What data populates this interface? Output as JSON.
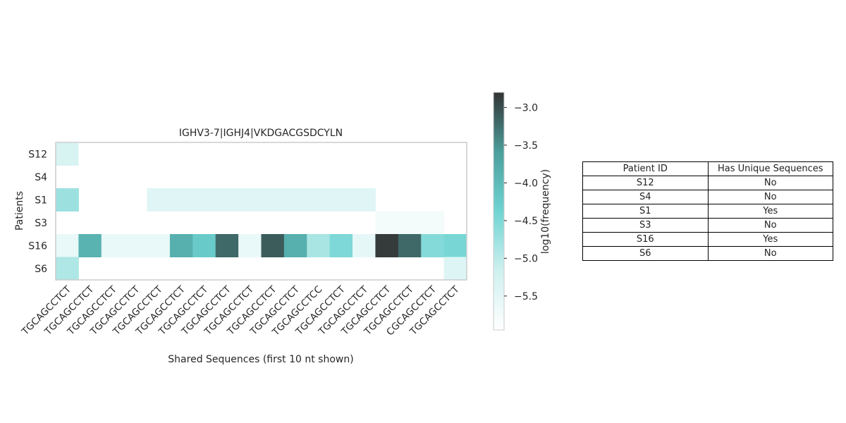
{
  "chart_data": {
    "type": "heatmap",
    "title": "IGHV3-7|IGHJ4|VKDGACGSDCYLN",
    "xlabel": "Shared Sequences (first 10 nt shown)",
    "ylabel": "Patients",
    "rows": [
      "S12",
      "S4",
      "S1",
      "S3",
      "S16",
      "S6"
    ],
    "columns": [
      "TGCAGCCTCT",
      "TGCAGCCTCT",
      "TGCAGCCTCT",
      "TGCAGCCTCT",
      "TGCAGCCTCT",
      "TGCAGCCTCT",
      "TGCAGCCTCT",
      "TGCAGCCTCT",
      "TGCAGCCTCT",
      "TGCAGCCTCT",
      "TGCAGCCTCT",
      "TGCAGCCTCC",
      "TGCAGCCTCT",
      "TGCAGCCTCT",
      "TGCAGCCTCT",
      "TGCAGCCTCT",
      "CGCAGCCTCT",
      "TGCAGCCTCT"
    ],
    "values": [
      [
        -5.3,
        -5.95,
        -5.95,
        -5.95,
        null,
        null,
        null,
        null,
        null,
        null,
        null,
        null,
        null,
        null,
        null,
        null,
        null,
        null
      ],
      [
        null,
        null,
        null,
        null,
        null,
        null,
        null,
        null,
        null,
        null,
        null,
        null,
        null,
        null,
        null,
        null,
        null,
        null
      ],
      [
        -4.75,
        null,
        null,
        null,
        -5.45,
        -5.45,
        -5.45,
        -5.45,
        -5.45,
        -5.45,
        -5.45,
        -5.45,
        -5.45,
        -5.45,
        null,
        null,
        null,
        null
      ],
      [
        null,
        null,
        null,
        null,
        null,
        null,
        null,
        null,
        null,
        null,
        null,
        null,
        null,
        null,
        -5.75,
        -5.75,
        -5.75,
        null
      ],
      [
        -5.6,
        -3.9,
        -5.6,
        -5.6,
        -5.6,
        -3.85,
        -4.25,
        -3.2,
        -5.6,
        -3.1,
        -3.85,
        -4.85,
        -4.5,
        -5.55,
        -2.85,
        -3.2,
        -4.55,
        -4.45
      ],
      [
        -4.9,
        null,
        null,
        null,
        null,
        null,
        null,
        null,
        null,
        null,
        null,
        null,
        null,
        null,
        null,
        null,
        null,
        -5.4
      ]
    ],
    "colorbar": {
      "label": "log10(frequency)",
      "min": -5.95,
      "max": -2.8,
      "ticks": [
        -3.0,
        -3.5,
        -4.0,
        -4.5,
        -5.0,
        -5.5
      ],
      "tick_labels": [
        "−3.0",
        "−3.5",
        "−4.0",
        "−4.5",
        "−5.0",
        "−5.5"
      ],
      "colors": [
        "#ffffff",
        "#cef0ef",
        "#6fd4d2",
        "#4b9e9c",
        "#333333"
      ]
    },
    "grid": false
  },
  "table": {
    "headers": [
      "Patient ID",
      "Has Unique Sequences"
    ],
    "rows": [
      [
        "S12",
        "No"
      ],
      [
        "S4",
        "No"
      ],
      [
        "S1",
        "Yes"
      ],
      [
        "S3",
        "No"
      ],
      [
        "S16",
        "Yes"
      ],
      [
        "S6",
        "No"
      ]
    ]
  }
}
